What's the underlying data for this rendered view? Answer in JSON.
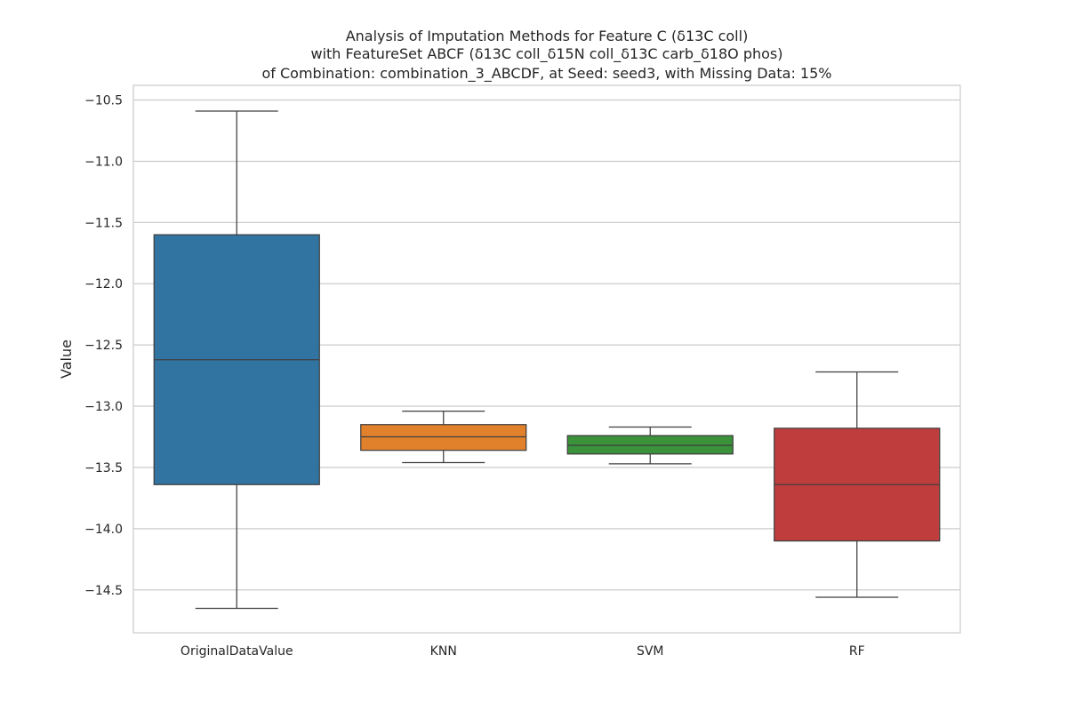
{
  "chart_data": {
    "type": "box",
    "title": [
      "Analysis of Imputation Methods for Feature C (δ13C coll)",
      "with FeatureSet ABCF (δ13C coll_δ15N coll_δ13C carb_δ18O phos)",
      "of Combination: combination_3_ABCDF, at Seed: seed3, with Missing Data: 15%"
    ],
    "xlabel": "",
    "ylabel": "Value",
    "ylim": [
      -14.85,
      -10.38
    ],
    "yticks": [
      -10.5,
      -11.0,
      -11.5,
      -12.0,
      -12.5,
      -13.0,
      -13.5,
      -14.0,
      -14.5
    ],
    "ytick_labels": [
      "−10.5",
      "−11.0",
      "−11.5",
      "−12.0",
      "−12.5",
      "−13.0",
      "−13.5",
      "−14.0",
      "−14.5"
    ],
    "grid": "horizontal",
    "categories": [
      "OriginalDataValue",
      "KNN",
      "SVM",
      "RF"
    ],
    "boxes": [
      {
        "category": "OriginalDataValue",
        "color": "#3274a1",
        "whisker_low": -14.65,
        "q1": -13.64,
        "median": -12.62,
        "q3": -11.6,
        "whisker_high": -10.59
      },
      {
        "category": "KNN",
        "color": "#e1812c",
        "whisker_low": -13.46,
        "q1": -13.36,
        "median": -13.25,
        "q3": -13.15,
        "whisker_high": -13.04
      },
      {
        "category": "SVM",
        "color": "#3a923a",
        "whisker_low": -13.47,
        "q1": -13.39,
        "median": -13.32,
        "q3": -13.24,
        "whisker_high": -13.17
      },
      {
        "category": "RF",
        "color": "#c03d3e",
        "whisker_low": -14.56,
        "q1": -14.1,
        "median": -13.64,
        "q3": -13.18,
        "whisker_high": -12.72
      }
    ]
  }
}
